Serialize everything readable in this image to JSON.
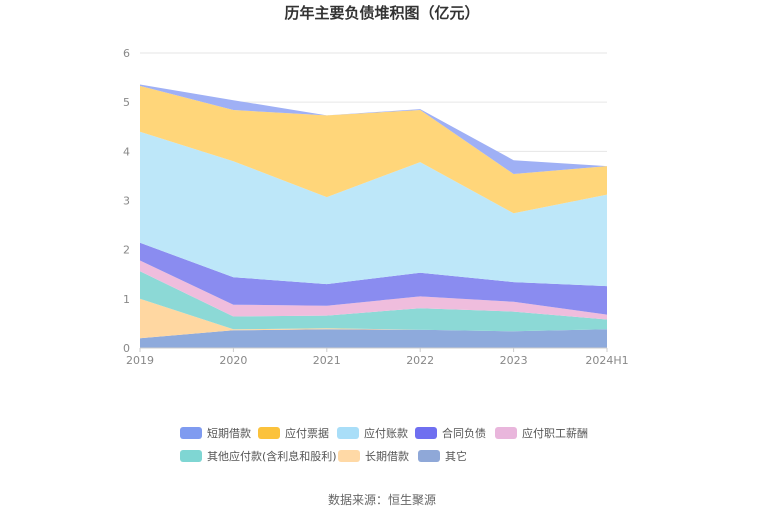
{
  "chart_data": {
    "type": "area",
    "stacked": true,
    "title": "历年主要负债堆积图（亿元）",
    "categories": [
      "2019",
      "2020",
      "2021",
      "2022",
      "2023",
      "2024H1"
    ],
    "ylim": [
      0,
      6
    ],
    "yticks": [
      "0",
      "1",
      "2",
      "3",
      "4",
      "5",
      "6"
    ],
    "grid": true,
    "legend_position": "bottom",
    "series": [
      {
        "name": "其它",
        "color": "#8eaadc",
        "values": [
          0.2,
          0.36,
          0.38,
          0.37,
          0.34,
          0.38
        ]
      },
      {
        "name": "长期借款",
        "color": "#ffd7a1",
        "values": [
          0.8,
          0.02,
          0.02,
          0.0,
          0.0,
          0.0
        ]
      },
      {
        "name": "其他应付款(含利息和股利)",
        "color": "#8cd9d6",
        "values": [
          0.56,
          0.26,
          0.26,
          0.44,
          0.4,
          0.2
        ]
      },
      {
        "name": "应付职工薪酬",
        "color": "#efbddd",
        "values": [
          0.22,
          0.24,
          0.2,
          0.24,
          0.2,
          0.1
        ]
      },
      {
        "name": "合同负债",
        "color": "#8a8cf0",
        "values": [
          0.36,
          0.56,
          0.44,
          0.48,
          0.4,
          0.58
        ]
      },
      {
        "name": "应付账款",
        "color": "#bde7f9",
        "values": [
          2.26,
          2.36,
          1.77,
          2.25,
          1.4,
          1.86
        ]
      },
      {
        "name": "应付票据",
        "color": "#ffd67a",
        "values": [
          0.93,
          1.04,
          1.66,
          1.06,
          0.8,
          0.58
        ]
      },
      {
        "name": "短期借款",
        "color": "#9fb0f5",
        "values": [
          0.03,
          0.2,
          0.0,
          0.02,
          0.28,
          0.0
        ]
      }
    ],
    "legend_order": [
      "短期借款",
      "应付票据",
      "应付账款",
      "合同负债",
      "应付职工薪酬",
      "其他应付款(含利息和股利)",
      "长期借款",
      "其它"
    ],
    "legend_colors": {
      "短期借款": "#7f9bf0",
      "应付票据": "#fbc23c",
      "应付账款": "#a9def8",
      "合同负债": "#6f6ff0",
      "应付职工薪酬": "#e9b6dc",
      "其他应付款(含利息和股利)": "#7fd6d3",
      "长期借款": "#ffd9a6",
      "其它": "#8fa8d8"
    }
  },
  "source": "数据来源：恒生聚源"
}
